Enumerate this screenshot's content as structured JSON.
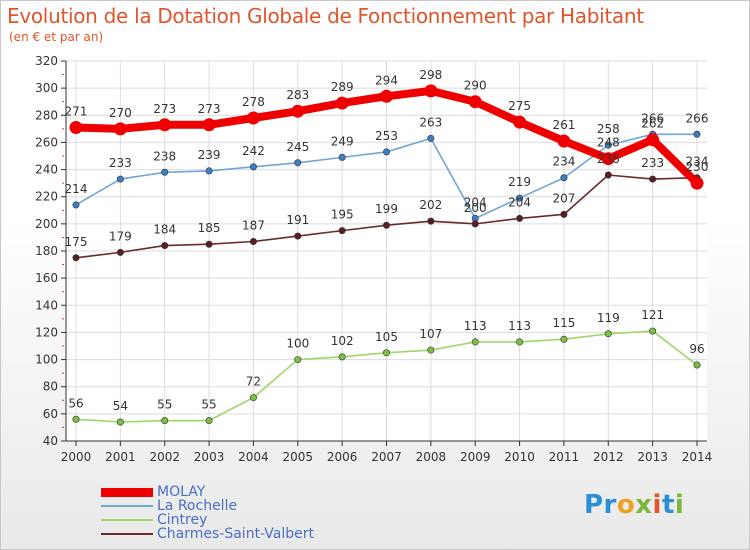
{
  "brand": {
    "parts": [
      {
        "text": "Pr",
        "color": "#2a8fd6"
      },
      {
        "text": "o",
        "color": "#f0a020"
      },
      {
        "text": "x",
        "color": "#7ab83a"
      },
      {
        "text": "i",
        "color": "#e0552b"
      },
      {
        "text": "t",
        "color": "#2a8fd6"
      },
      {
        "text": "i",
        "color": "#7ab83a"
      }
    ]
  },
  "chart_data": {
    "type": "line",
    "title": "Evolution de la Dotation Globale de Fonctionnement par Habitant",
    "subtitle": "(en € et par an)",
    "xlabel": "",
    "ylabel": "",
    "x": [
      2000,
      2001,
      2002,
      2003,
      2004,
      2005,
      2006,
      2007,
      2008,
      2009,
      2010,
      2011,
      2012,
      2013,
      2014
    ],
    "ylim": [
      40,
      320
    ],
    "yticks": [
      40,
      60,
      80,
      100,
      120,
      140,
      160,
      180,
      200,
      220,
      240,
      260,
      280,
      300,
      320
    ],
    "grid": true,
    "legend_position": "bottom-left",
    "series": [
      {
        "name": "MOLAY",
        "color": "#ee0000",
        "marker_color": "#ee0000",
        "values": [
          271,
          270,
          273,
          273,
          278,
          283,
          289,
          294,
          298,
          290,
          275,
          261,
          248,
          262,
          230
        ]
      },
      {
        "name": "La Rochelle",
        "color": "#6fa6d6",
        "marker_color": "#3d7fc4",
        "values": [
          214,
          233,
          238,
          239,
          242,
          245,
          249,
          253,
          263,
          204,
          219,
          234,
          258,
          266,
          266
        ]
      },
      {
        "name": "Cintrey",
        "color": "#9ed66a",
        "marker_color": "#7ac043",
        "values": [
          56,
          54,
          55,
          55,
          72,
          100,
          102,
          105,
          107,
          113,
          113,
          115,
          119,
          121,
          96
        ]
      },
      {
        "name": "Charmes-Saint-Valbert",
        "color": "#6b2a2a",
        "marker_color": "#5a1e1e",
        "values": [
          175,
          179,
          184,
          185,
          187,
          191,
          195,
          199,
          202,
          200,
          204,
          207,
          236,
          233,
          234
        ]
      }
    ]
  }
}
